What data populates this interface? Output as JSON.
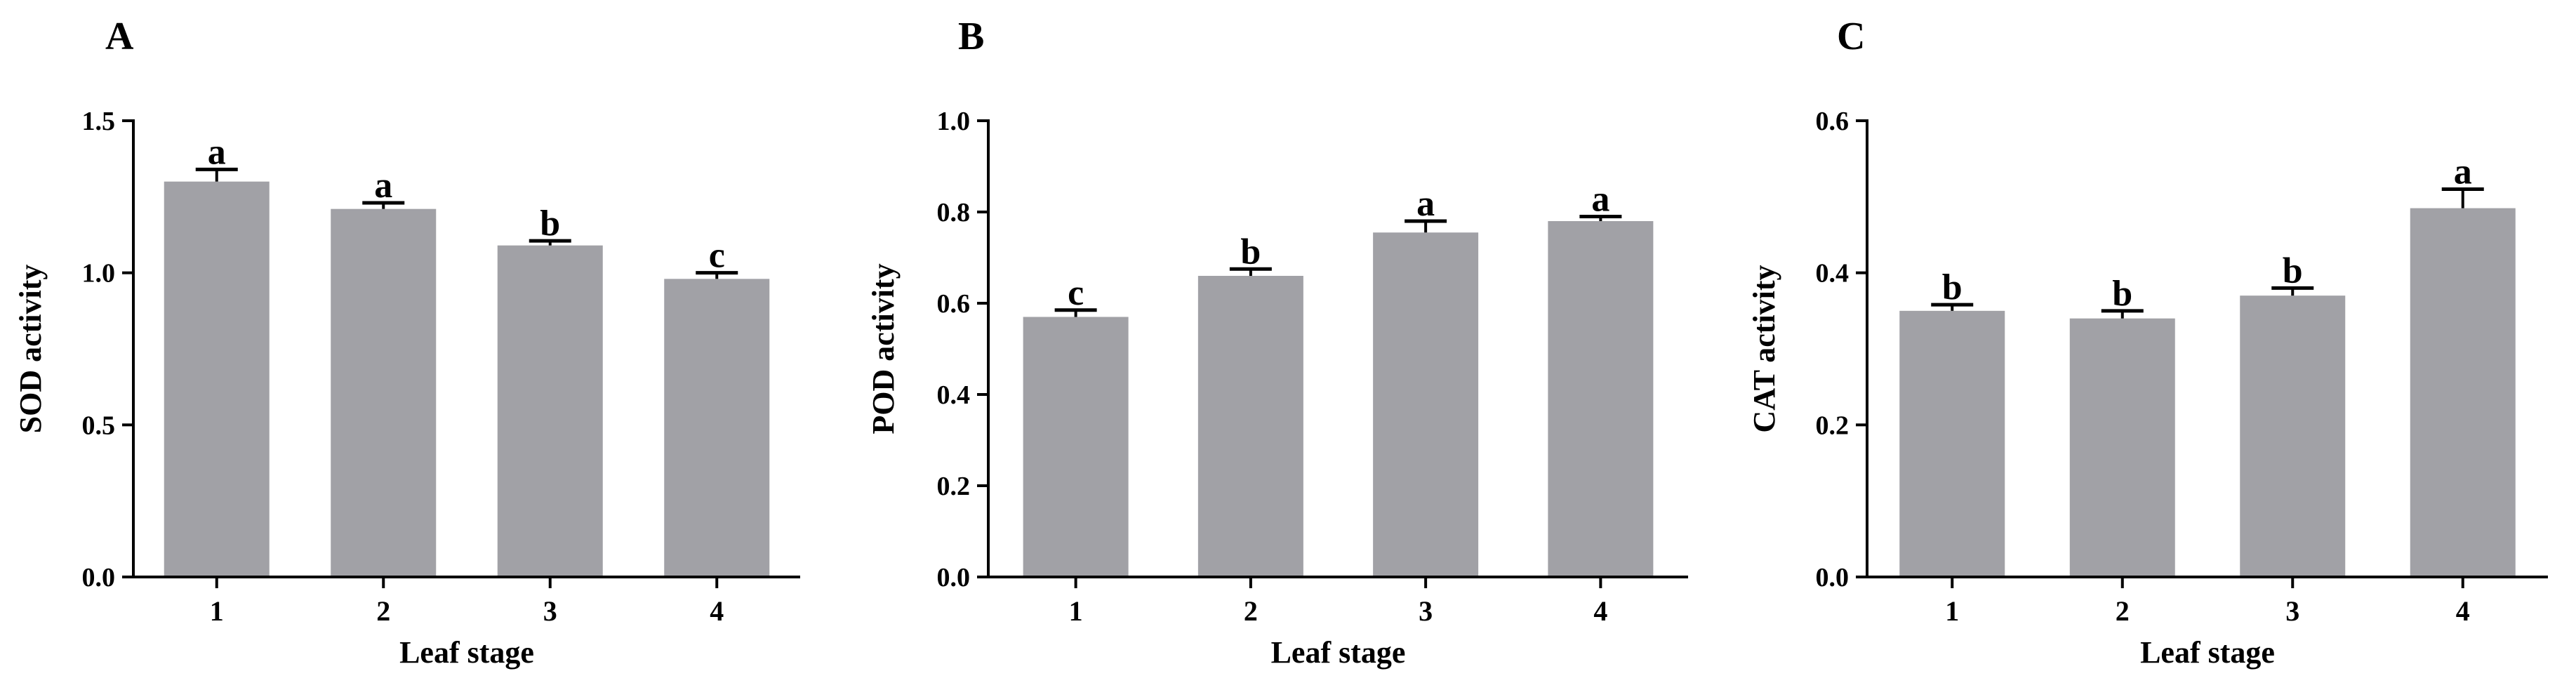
{
  "panels": [
    {
      "letter": "A"
    },
    {
      "letter": "B"
    },
    {
      "letter": "C"
    }
  ],
  "colors": {
    "bar": "#a1a1a6",
    "axis": "#000000"
  },
  "chart_data": [
    {
      "type": "bar",
      "categories": [
        "1",
        "2",
        "3",
        "4"
      ],
      "values": [
        1.3,
        1.21,
        1.09,
        0.98
      ],
      "errors": [
        0.04,
        0.02,
        0.015,
        0.02
      ],
      "letters": [
        "a",
        "a",
        "b",
        "c"
      ],
      "xlabel": "Leaf stage",
      "ylabel": "SOD activity",
      "ylim": [
        0,
        1.5
      ],
      "yticks": [
        0.0,
        0.5,
        1.0,
        1.5
      ],
      "ytick_labels": [
        "0.0",
        "0.5",
        "1.0",
        "1.5"
      ]
    },
    {
      "type": "bar",
      "categories": [
        "1",
        "2",
        "3",
        "4"
      ],
      "values": [
        0.57,
        0.66,
        0.755,
        0.78
      ],
      "errors": [
        0.015,
        0.015,
        0.025,
        0.01
      ],
      "letters": [
        "c",
        "b",
        "a",
        "a"
      ],
      "xlabel": "Leaf stage",
      "ylabel": "POD activity",
      "ylim": [
        0,
        1.0
      ],
      "yticks": [
        0.0,
        0.2,
        0.4,
        0.6,
        0.8,
        1.0
      ],
      "ytick_labels": [
        "0.0",
        "0.2",
        "0.4",
        "0.6",
        "0.8",
        "1.0"
      ]
    },
    {
      "type": "bar",
      "categories": [
        "1",
        "2",
        "3",
        "4"
      ],
      "values": [
        0.35,
        0.34,
        0.37,
        0.485
      ],
      "errors": [
        0.008,
        0.01,
        0.01,
        0.025
      ],
      "letters": [
        "b",
        "b",
        "b",
        "a"
      ],
      "xlabel": "Leaf stage",
      "ylabel": "CAT activity",
      "ylim": [
        0,
        0.6
      ],
      "yticks": [
        0.0,
        0.2,
        0.4,
        0.6
      ],
      "ytick_labels": [
        "0.0",
        "0.2",
        "0.4",
        "0.6"
      ]
    }
  ]
}
